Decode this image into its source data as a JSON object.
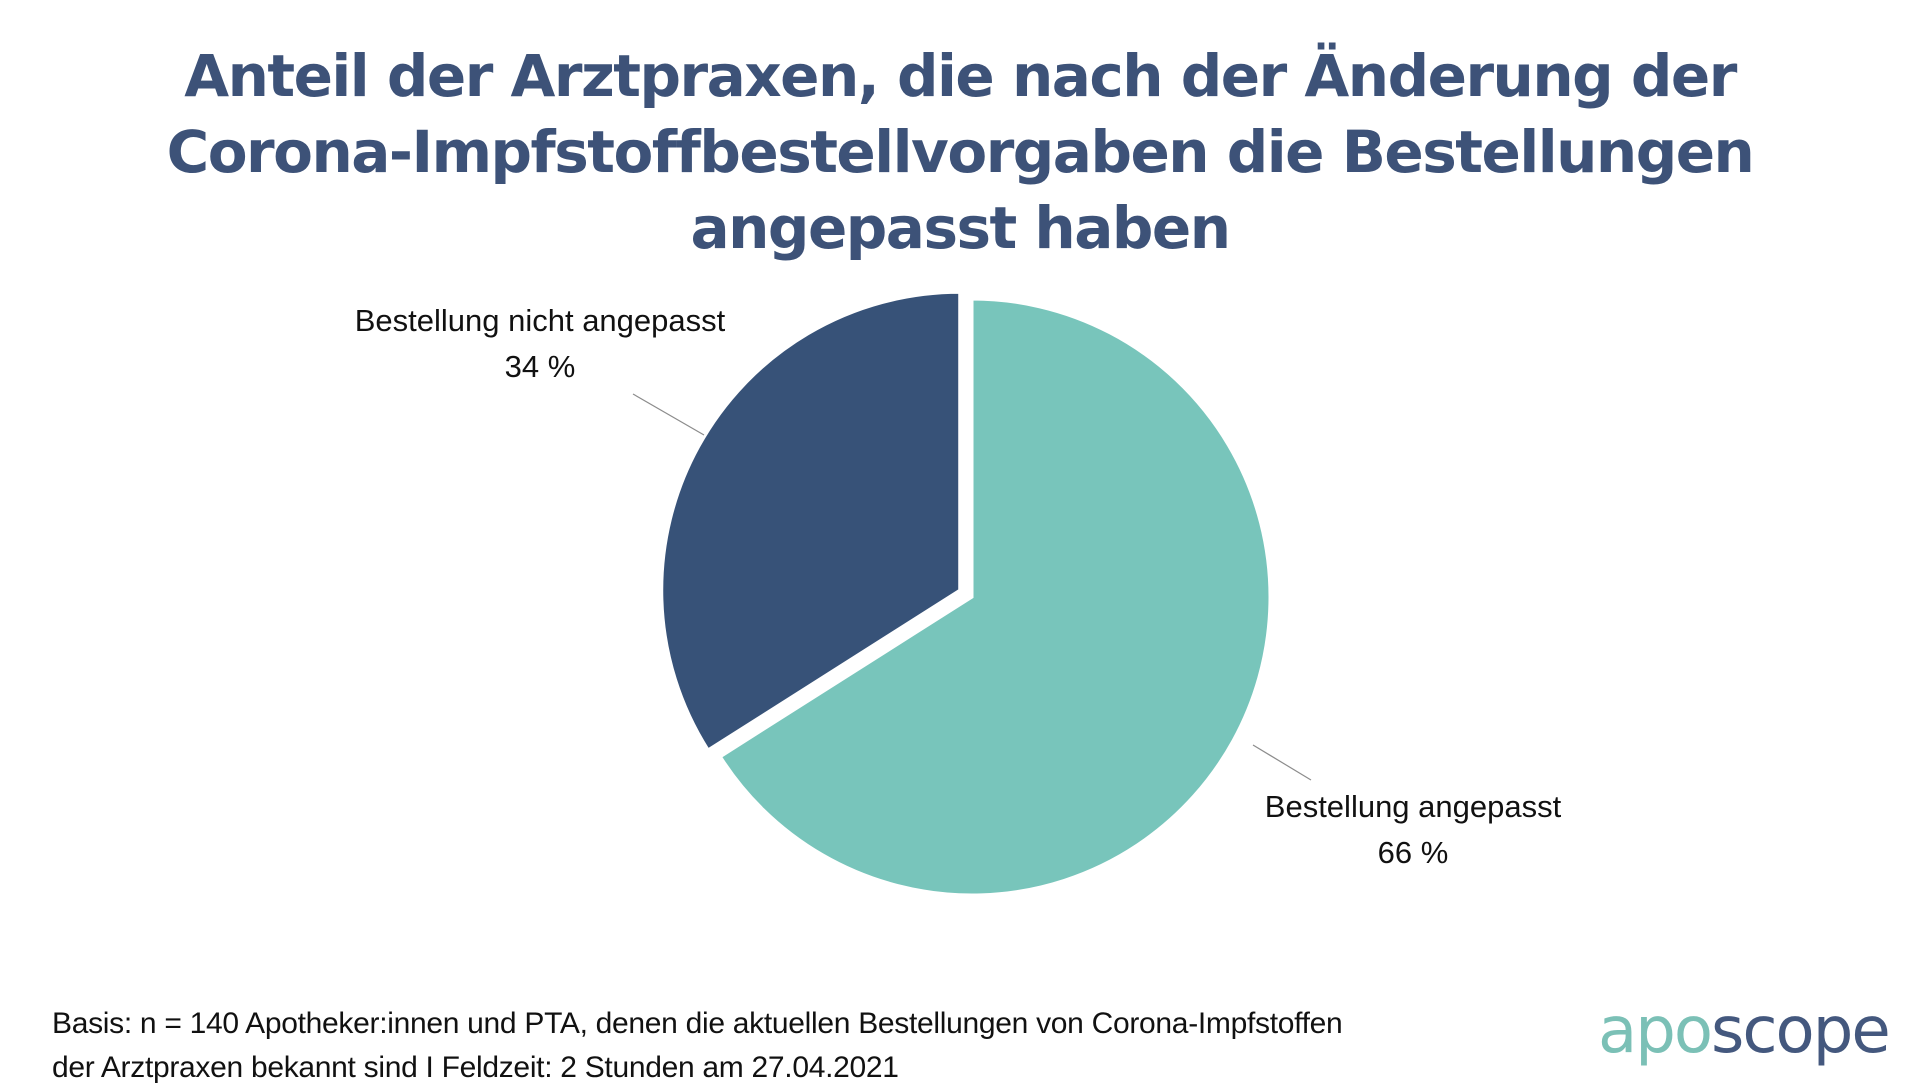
{
  "chart_data": {
    "type": "pie",
    "title": "Anteil der Arztpraxen, die nach der Änderung der Corona-Impfstoffbestellvorgaben die Bestellungen angepasst haben",
    "title_lines": [
      "Anteil der Arztpraxen, die nach der Änderung der",
      "Corona-Impfstoffbestellvorgaben die Bestellungen",
      "angepasst haben"
    ],
    "slices": [
      {
        "label": "Bestellung angepasst",
        "value": 66,
        "value_label": "66 %",
        "color": "#78c5bb",
        "exploded": false
      },
      {
        "label": "Bestellung nicht angepasst",
        "value": 34,
        "value_label": "34 %",
        "color": "#375278",
        "exploded": true
      }
    ],
    "start_angle": "12 o'clock",
    "direction": "clockwise"
  },
  "footer": {
    "line1": "Basis: n = 140 Apotheker:innen und PTA, denen die aktuellen Bestellungen von Corona-Impfstoffen",
    "line2": "der Arztpraxen bekannt sind I Feldzeit: 2 Stunden am 27.04.2021"
  },
  "logo": {
    "part1": "apo",
    "part2": "scope",
    "color1": "#7bc0b6",
    "color2": "#44587e"
  }
}
